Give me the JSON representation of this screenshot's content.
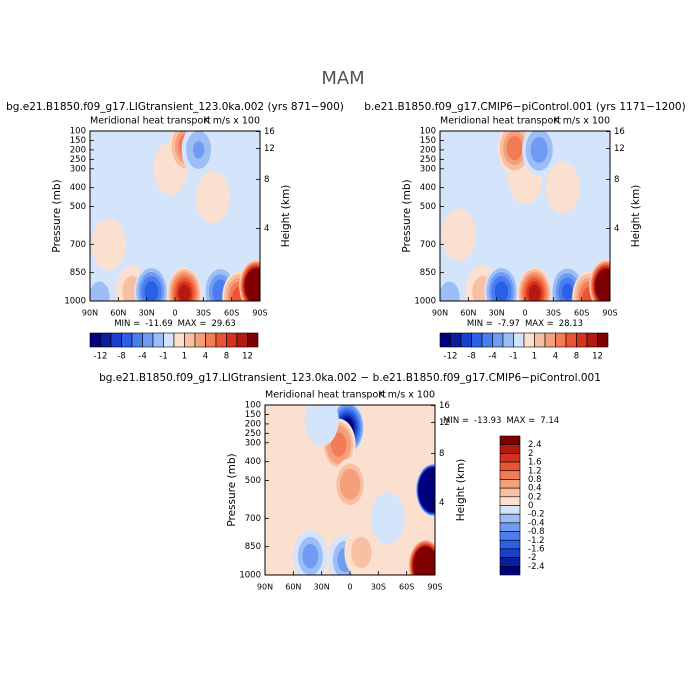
{
  "title": "MAM",
  "chart_data": [
    {
      "type": "contour",
      "title": "bg.e21.B1850.f09_g17.LIGtransient_123.0ka.002 (yrs 871−900)",
      "subtitle": "Meridional heat transport",
      "units": "K m/s x 100",
      "ylabel": "Pressure (mb)",
      "y2label": "Height (km)",
      "xlim": [
        90,
        -90
      ],
      "ylim": [
        1000,
        100
      ],
      "xticks": [
        {
          "value": 90,
          "label": "90N"
        },
        {
          "value": 60,
          "label": "60N"
        },
        {
          "value": 30,
          "label": "30N"
        },
        0,
        {
          "value": -30,
          "label": "30S"
        },
        {
          "value": -60,
          "label": "60S"
        },
        {
          "value": -90,
          "label": "90S"
        }
      ],
      "yticks": [
        100,
        150,
        200,
        250,
        300,
        400,
        500,
        700,
        850,
        1000
      ],
      "y2ticks": [
        4,
        8,
        12,
        16
      ],
      "stats": {
        "min_label": "MIN =",
        "min": -11.69,
        "max_label": "MAX =",
        "max": 29.63
      },
      "background": -0.5,
      "features": [
        {
          "lat": 5,
          "p": 300,
          "value": 0.5
        },
        {
          "lat": -40,
          "p": 450,
          "value": 0.5
        },
        {
          "lat": 70,
          "p": 700,
          "value": 0.5
        },
        {
          "lat": -12,
          "p": 180,
          "value": 6
        },
        {
          "lat": -25,
          "p": 200,
          "value": -3
        },
        {
          "lat": 80,
          "p": 980,
          "value": -2
        },
        {
          "lat": 45,
          "p": 950,
          "value": 2
        },
        {
          "lat": 25,
          "p": 950,
          "value": -8
        },
        {
          "lat": -10,
          "p": 960,
          "value": 12
        },
        {
          "lat": -48,
          "p": 950,
          "value": -6
        },
        {
          "lat": -68,
          "p": 980,
          "value": 8
        },
        {
          "lat": -86,
          "p": 920,
          "value": 29.63
        }
      ],
      "colorbar": {
        "labels": [
          -12,
          -8,
          -4,
          -1,
          1,
          4,
          8,
          12
        ],
        "colors": [
          "#00007f",
          "#0a1fa0",
          "#1a3fc8",
          "#2b5fe6",
          "#4a7df0",
          "#6f9cf2",
          "#9cbdf5",
          "#d4e4fa",
          "#fbdfcf",
          "#f7c0a3",
          "#f5a07b",
          "#f27c55",
          "#ea5533",
          "#d63020",
          "#b51a10",
          "#7f0000"
        ]
      }
    },
    {
      "type": "contour",
      "title": "b.e21.B1850.f09_g17.CMIP6−piControl.001 (yrs 1171−1200)",
      "subtitle": "Meridional heat transport",
      "units": "K m/s x 100",
      "ylabel": "Pressure (mb)",
      "y2label": "Height (km)",
      "xlim": [
        90,
        -90
      ],
      "ylim": [
        1000,
        100
      ],
      "xticks": [
        {
          "value": 90,
          "label": "90N"
        },
        {
          "value": 60,
          "label": "60N"
        },
        {
          "value": 30,
          "label": "30N"
        },
        0,
        {
          "value": -30,
          "label": "30S"
        },
        {
          "value": -60,
          "label": "60S"
        },
        {
          "value": -90,
          "label": "90S"
        }
      ],
      "yticks": [
        100,
        150,
        200,
        250,
        300,
        400,
        500,
        700,
        850,
        1000
      ],
      "y2ticks": [
        4,
        8,
        12,
        16
      ],
      "stats": {
        "min_label": "MIN =",
        "min": -7.97,
        "max_label": "MAX =",
        "max": 28.13
      },
      "background": -0.5,
      "features": [
        {
          "lat": 0,
          "p": 350,
          "value": 0.5
        },
        {
          "lat": -40,
          "p": 400,
          "value": 0.5
        },
        {
          "lat": 70,
          "p": 650,
          "value": 0.5
        },
        {
          "lat": 11,
          "p": 190,
          "value": 6
        },
        {
          "lat": -15,
          "p": 200,
          "value": -4
        },
        {
          "lat": 80,
          "p": 980,
          "value": -2
        },
        {
          "lat": 45,
          "p": 950,
          "value": 2
        },
        {
          "lat": 25,
          "p": 950,
          "value": -7.97
        },
        {
          "lat": -10,
          "p": 960,
          "value": 12
        },
        {
          "lat": -45,
          "p": 950,
          "value": -7
        },
        {
          "lat": -68,
          "p": 980,
          "value": 8
        },
        {
          "lat": -86,
          "p": 920,
          "value": 28.13
        }
      ],
      "colorbar": {
        "labels": [
          -12,
          -8,
          -4,
          -1,
          1,
          4,
          8,
          12
        ],
        "colors": [
          "#00007f",
          "#0a1fa0",
          "#1a3fc8",
          "#2b5fe6",
          "#4a7df0",
          "#6f9cf2",
          "#9cbdf5",
          "#d4e4fa",
          "#fbdfcf",
          "#f7c0a3",
          "#f5a07b",
          "#f27c55",
          "#ea5533",
          "#d63020",
          "#b51a10",
          "#7f0000"
        ]
      }
    },
    {
      "type": "contour",
      "title": "bg.e21.B1850.f09_g17.LIGtransient_123.0ka.002 − b.e21.B1850.f09_g17.CMIP6−piControl.001",
      "subtitle": "Meridional heat transport",
      "units": "K m/s x 100",
      "ylabel": "Pressure (mb)",
      "y2label": "Height (km)",
      "xlim": [
        90,
        -90
      ],
      "ylim": [
        1000,
        100
      ],
      "xticks": [
        {
          "value": 90,
          "label": "90N"
        },
        {
          "value": 60,
          "label": "60N"
        },
        {
          "value": 30,
          "label": "30N"
        },
        0,
        {
          "value": -30,
          "label": "30S"
        },
        {
          "value": -60,
          "label": "60S"
        },
        {
          "value": -90,
          "label": "90S"
        }
      ],
      "yticks": [
        100,
        150,
        200,
        250,
        300,
        400,
        500,
        700,
        850,
        1000
      ],
      "y2ticks": [
        4,
        8,
        12,
        16
      ],
      "stats": {
        "min_label": "MIN =",
        "min": -13.93,
        "max_label": "MAX =",
        "max": 7.14
      },
      "background": 0.1,
      "features": [
        {
          "lat": 3,
          "p": 220,
          "value": -3
        },
        {
          "lat": 12,
          "p": 310,
          "value": 1.2
        },
        {
          "lat": 0,
          "p": 520,
          "value": 0.8
        },
        {
          "lat": 30,
          "p": 180,
          "value": -0.1
        },
        {
          "lat": 42,
          "p": 900,
          "value": -0.6
        },
        {
          "lat": 5,
          "p": 920,
          "value": -0.6
        },
        {
          "lat": -12,
          "p": 880,
          "value": 0.4
        },
        {
          "lat": -40,
          "p": 700,
          "value": -0.1
        },
        {
          "lat": -88,
          "p": 550,
          "value": -13.93
        },
        {
          "lat": -80,
          "p": 950,
          "value": 7.14
        }
      ],
      "colorbar": {
        "labels": [
          2.4,
          2,
          1.6,
          1.2,
          0.8,
          0.4,
          0.2,
          0,
          -0.2,
          -0.4,
          -0.8,
          -1.2,
          -1.6,
          -2,
          -2.4
        ],
        "colors": [
          "#7f0000",
          "#b51a10",
          "#d63020",
          "#ea5533",
          "#f27c55",
          "#f5a07b",
          "#f7c0a3",
          "#fbdfcf",
          "#d4e4fa",
          "#9cbdf5",
          "#6f9cf2",
          "#4a7df0",
          "#2b5fe6",
          "#1a3fc8",
          "#0a1fa0",
          "#00007f"
        ]
      }
    }
  ]
}
